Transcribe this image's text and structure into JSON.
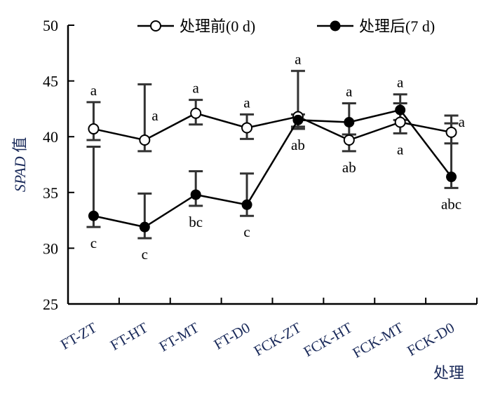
{
  "chart_data": {
    "type": "line",
    "title": "",
    "xlabel": "处理",
    "ylabel_italic": "SPAD",
    "ylabel_suffix": " 值",
    "ylim": [
      25,
      50
    ],
    "yticks": [
      "25",
      "30",
      "35",
      "40",
      "45",
      "50"
    ],
    "categories": [
      "FT-ZT",
      "FT-HT",
      "FT-MT",
      "FT-D0",
      "FCK-ZT",
      "FCK-HT",
      "FCK-MT",
      "FCK-D0"
    ],
    "legend_position": "top",
    "series": [
      {
        "name": "处理前(0 d)",
        "marker": "open-circle",
        "values": [
          40.7,
          39.7,
          42.1,
          40.8,
          41.8,
          39.7,
          41.3,
          40.4
        ],
        "err_high": [
          43.1,
          44.7,
          43.3,
          42.0,
          42.0,
          40.2,
          43.0,
          41.9
        ],
        "err_low": [
          39.7,
          38.7,
          41.1,
          39.8,
          40.7,
          38.7,
          40.3,
          39.4
        ],
        "letters": [
          "a",
          "a",
          "a",
          "a",
          "ab",
          "ab",
          "a",
          "a"
        ],
        "letter_placement": [
          "above",
          "right",
          "above",
          "above",
          "below",
          "below",
          "below",
          "right"
        ]
      },
      {
        "name": "处理后(7 d)",
        "marker": "filled-circle",
        "values": [
          32.9,
          31.9,
          34.8,
          33.9,
          41.5,
          41.3,
          42.4,
          36.4
        ],
        "err_high": [
          39.1,
          34.9,
          36.9,
          36.7,
          45.9,
          43.0,
          43.8,
          41.2
        ],
        "err_low": [
          31.9,
          30.9,
          33.8,
          32.9,
          40.9,
          40.2,
          41.5,
          35.4
        ],
        "letters": [
          "c",
          "c",
          "bc",
          "c",
          "a",
          "a",
          "a",
          "abc"
        ],
        "letter_placement": [
          "below",
          "below",
          "below",
          "below",
          "above",
          "above",
          "above",
          "below"
        ]
      }
    ]
  }
}
